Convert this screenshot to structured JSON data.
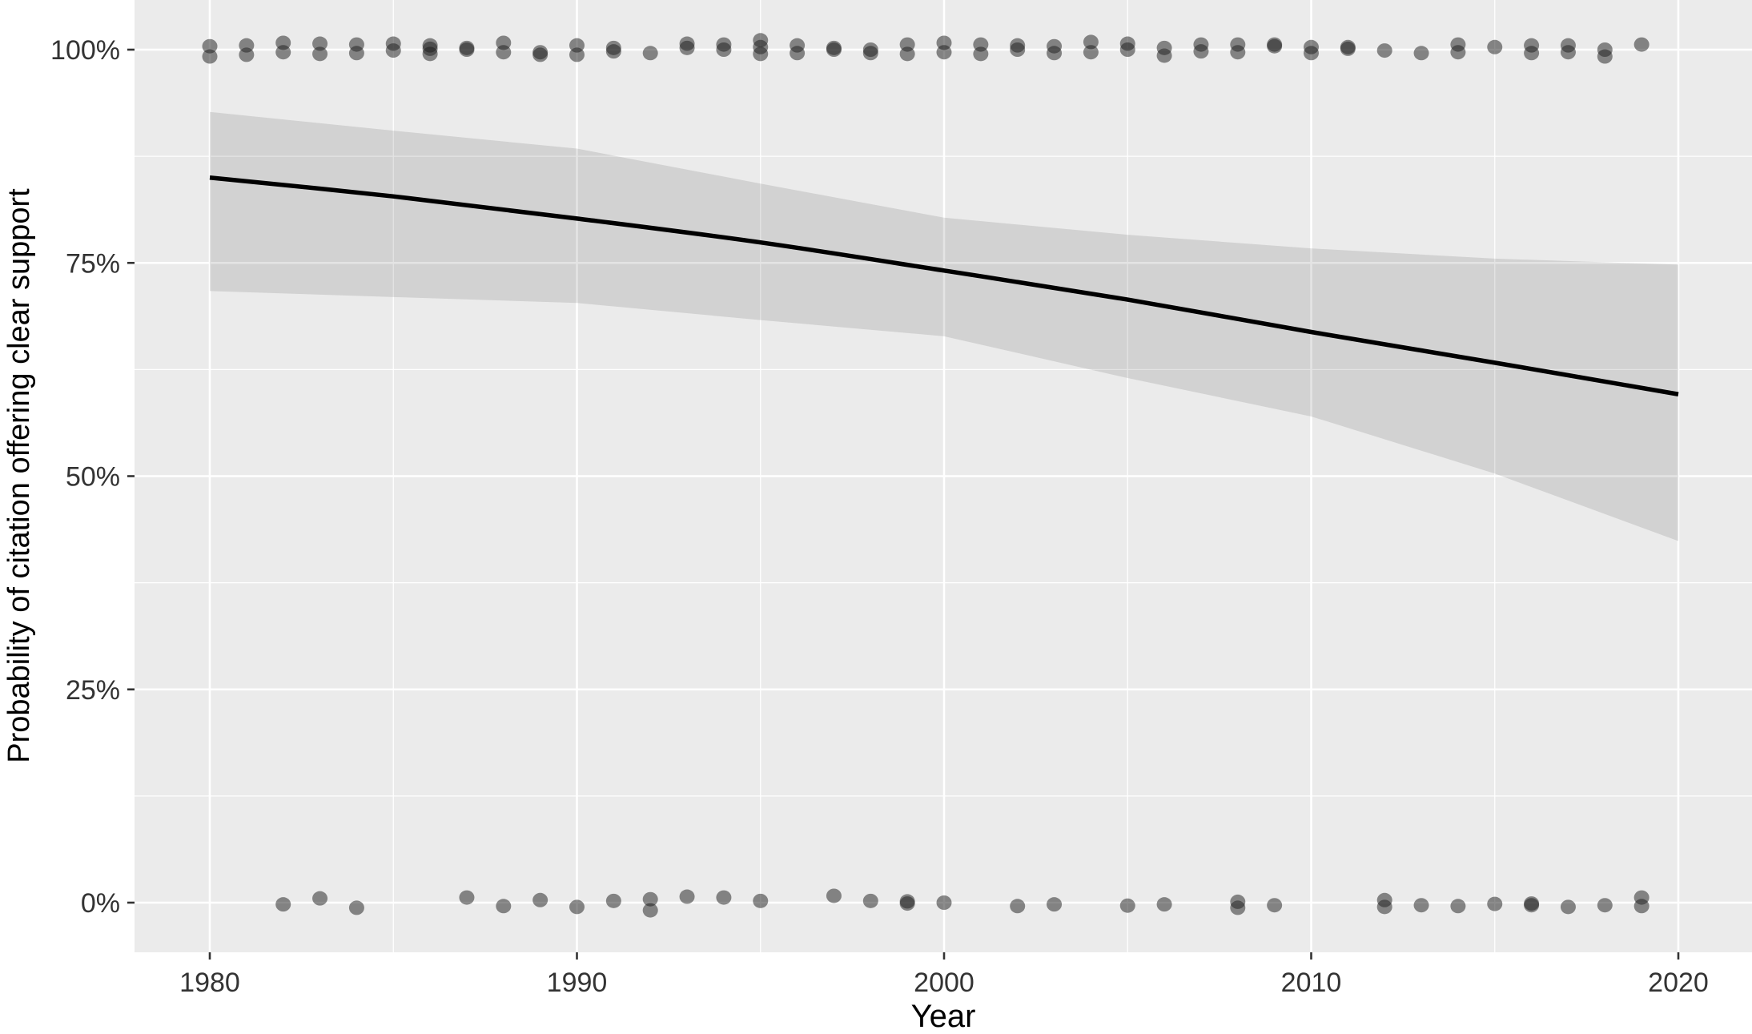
{
  "chart_data": {
    "type": "line",
    "title": "",
    "xlabel": "Year",
    "ylabel": "Probability of citation offering clear support",
    "legend": "none",
    "grid": "major-and-minor",
    "x_axis": {
      "ticks": [
        1980,
        1990,
        2000,
        2010,
        2020
      ],
      "tick_labels": [
        "1980",
        "1990",
        "2000",
        "2010",
        "2020"
      ],
      "minor_ticks": [
        1985,
        1995,
        2005,
        2015
      ],
      "range": [
        1977.95,
        2022.0
      ]
    },
    "y_axis": {
      "ticks": [
        0,
        25,
        50,
        75,
        100
      ],
      "tick_labels": [
        "0%",
        "25%",
        "50%",
        "75%",
        "100%"
      ],
      "minor_ticks": [
        12.5,
        37.5,
        62.5,
        87.5
      ],
      "range": [
        -5.8,
        105.8
      ]
    },
    "fit_line": {
      "x": [
        1980,
        1985,
        1990,
        1995,
        2000,
        2005,
        2010,
        2015,
        2020
      ],
      "y": [
        85.0,
        82.8,
        80.2,
        77.4,
        74.1,
        70.7,
        66.9,
        63.3,
        59.6
      ]
    },
    "confidence_ribbon": {
      "x": [
        1980,
        1985,
        1990,
        1995,
        2000,
        2005,
        2010,
        2015,
        2020
      ],
      "upper": [
        92.7,
        90.5,
        88.4,
        84.3,
        80.3,
        78.3,
        76.7,
        75.5,
        74.8
      ],
      "lower": [
        71.7,
        71.0,
        70.3,
        68.3,
        66.4,
        61.5,
        57.0,
        50.3,
        42.4
      ]
    },
    "points_100": [
      [
        1980,
        100.4
      ],
      [
        1980,
        99.2
      ],
      [
        1981,
        100.5
      ],
      [
        1981,
        99.4
      ],
      [
        1982,
        100.8
      ],
      [
        1982,
        99.7
      ],
      [
        1983,
        100.7
      ],
      [
        1983,
        99.5
      ],
      [
        1984,
        100.6
      ],
      [
        1984,
        99.6
      ],
      [
        1985,
        100.7
      ],
      [
        1985,
        99.9
      ],
      [
        1986,
        100.5
      ],
      [
        1986,
        100.1
      ],
      [
        1986,
        99.5
      ],
      [
        1987,
        100.2
      ],
      [
        1987,
        100.0
      ],
      [
        1988,
        100.8
      ],
      [
        1988,
        99.7
      ],
      [
        1989,
        99.4
      ],
      [
        1989,
        99.7
      ],
      [
        1990,
        100.5
      ],
      [
        1990,
        99.4
      ],
      [
        1991,
        100.2
      ],
      [
        1991,
        99.8
      ],
      [
        1992,
        99.6
      ],
      [
        1993,
        100.7
      ],
      [
        1993,
        100.2
      ],
      [
        1994,
        100.6
      ],
      [
        1994,
        100.0
      ],
      [
        1995,
        101.1
      ],
      [
        1995,
        100.3
      ],
      [
        1995,
        99.5
      ],
      [
        1996,
        100.5
      ],
      [
        1996,
        99.6
      ],
      [
        1997,
        100.2
      ],
      [
        1997,
        100.0
      ],
      [
        1998,
        100.0
      ],
      [
        1998,
        99.6
      ],
      [
        1999,
        100.6
      ],
      [
        1999,
        99.5
      ],
      [
        2000,
        100.8
      ],
      [
        2000,
        99.7
      ],
      [
        2001,
        100.6
      ],
      [
        2001,
        99.5
      ],
      [
        2002,
        100.5
      ],
      [
        2002,
        100.0
      ],
      [
        2003,
        100.4
      ],
      [
        2003,
        99.6
      ],
      [
        2004,
        100.9
      ],
      [
        2004,
        99.7
      ],
      [
        2005,
        100.7
      ],
      [
        2005,
        100.0
      ],
      [
        2006,
        100.2
      ],
      [
        2006,
        99.3
      ],
      [
        2007,
        100.6
      ],
      [
        2007,
        99.8
      ],
      [
        2008,
        100.6
      ],
      [
        2008,
        99.7
      ],
      [
        2009,
        100.6
      ],
      [
        2009,
        100.4
      ],
      [
        2010,
        100.3
      ],
      [
        2010,
        99.6
      ],
      [
        2011,
        100.3
      ],
      [
        2011,
        100.1
      ],
      [
        2012,
        99.9
      ],
      [
        2013,
        99.6
      ],
      [
        2014,
        100.6
      ],
      [
        2014,
        99.7
      ],
      [
        2015,
        100.3
      ],
      [
        2016,
        100.5
      ],
      [
        2016,
        99.6
      ],
      [
        2017,
        100.5
      ],
      [
        2017,
        99.7
      ],
      [
        2018,
        100.0
      ],
      [
        2018,
        99.2
      ],
      [
        2019,
        100.6
      ]
    ],
    "points_0": [
      [
        1982,
        -0.2
      ],
      [
        1983,
        0.5
      ],
      [
        1984,
        -0.6
      ],
      [
        1987,
        0.6
      ],
      [
        1988,
        -0.4
      ],
      [
        1989,
        0.3
      ],
      [
        1990,
        -0.5
      ],
      [
        1991,
        0.2
      ],
      [
        1992,
        0.4
      ],
      [
        1992,
        -0.9
      ],
      [
        1993,
        0.7
      ],
      [
        1994,
        0.6
      ],
      [
        1995,
        0.2
      ],
      [
        1997,
        0.8
      ],
      [
        1998,
        0.2
      ],
      [
        1999,
        -0.1
      ],
      [
        1999,
        0.15
      ],
      [
        2000,
        0.0
      ],
      [
        2002,
        -0.4
      ],
      [
        2003,
        -0.2
      ],
      [
        2005,
        -0.35
      ],
      [
        2006,
        -0.2
      ],
      [
        2008,
        0.1
      ],
      [
        2008,
        -0.6
      ],
      [
        2009,
        -0.3
      ],
      [
        2012,
        0.3
      ],
      [
        2012,
        -0.5
      ],
      [
        2013,
        -0.3
      ],
      [
        2014,
        -0.4
      ],
      [
        2015,
        -0.15
      ],
      [
        2016,
        -0.3
      ],
      [
        2016,
        -0.1
      ],
      [
        2017,
        -0.5
      ],
      [
        2018,
        -0.3
      ],
      [
        2019,
        0.6
      ],
      [
        2019,
        -0.4
      ]
    ],
    "style": {
      "panel_bg": "#EBEBEB",
      "grid_color": "#FFFFFF",
      "line_color": "#000000",
      "point_color": "#1A1A1A",
      "point_opacity": 0.5,
      "ribbon_color": "#000000",
      "ribbon_opacity": 0.105,
      "tick_text_color": "#333333",
      "axis_title_color": "#000000",
      "tick_mark_color": "#333333"
    }
  }
}
